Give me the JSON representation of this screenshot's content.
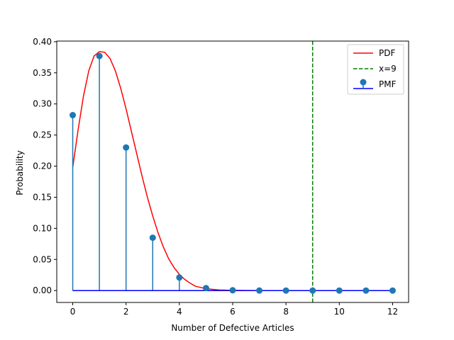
{
  "chart_data": {
    "type": "line",
    "title": "",
    "xlabel": "Number of Defective Articles",
    "ylabel": "Probability",
    "xlim": [
      -0.6,
      12.6
    ],
    "ylim": [
      -0.0191,
      0.401
    ],
    "xticks": [
      0,
      2,
      4,
      6,
      8,
      10,
      12
    ],
    "xtick_labels": [
      "0",
      "2",
      "4",
      "6",
      "8",
      "10",
      "12"
    ],
    "yticks": [
      0.0,
      0.05,
      0.1,
      0.15,
      0.2,
      0.25,
      0.3,
      0.35,
      0.4
    ],
    "ytick_labels": [
      "0.00",
      "0.05",
      "0.10",
      "0.15",
      "0.20",
      "0.25",
      "0.30",
      "0.35",
      "0.40"
    ],
    "grid": false,
    "legend_position": "top-right",
    "legend": [
      {
        "label": "PDF",
        "style": "solid-line",
        "color": "#ff0000"
      },
      {
        "label": "x=9",
        "style": "dashed-line",
        "color": "#008000"
      },
      {
        "label": "PMF",
        "style": "stem",
        "color": "#1f77b4",
        "baseline_color": "#0000ff"
      }
    ],
    "series": [
      {
        "name": "PMF",
        "kind": "stem",
        "color": "#1f77b4",
        "baseline_color": "#0000ff",
        "x": [
          0,
          1,
          2,
          3,
          4,
          5,
          6,
          7,
          8,
          9,
          10,
          11,
          12
        ],
        "y": [
          0.282,
          0.377,
          0.23,
          0.085,
          0.021,
          0.004,
          0.0005,
          5e-05,
          0.0,
          0.0,
          0.0,
          0.0,
          0.0
        ]
      },
      {
        "name": "PDF",
        "kind": "line",
        "color": "#ff0000",
        "x": [
          0.0,
          0.2,
          0.4,
          0.6,
          0.8,
          1.0,
          1.2,
          1.4,
          1.6,
          1.8,
          2.0,
          2.2,
          2.4,
          2.6,
          2.8,
          3.0,
          3.2,
          3.4,
          3.6,
          3.8,
          4.0,
          4.2,
          4.4,
          4.6,
          4.8,
          5.0,
          5.5,
          6.0,
          7.0,
          8.0,
          10.0,
          12.0
        ],
        "y": [
          0.198,
          0.258,
          0.312,
          0.353,
          0.377,
          0.384,
          0.383,
          0.373,
          0.353,
          0.325,
          0.292,
          0.256,
          0.22,
          0.184,
          0.15,
          0.12,
          0.093,
          0.07,
          0.051,
          0.037,
          0.026,
          0.018,
          0.012,
          0.007,
          0.005,
          0.003,
          0.001,
          0.0004,
          0.0,
          0.0,
          0.0,
          0.0
        ]
      },
      {
        "name": "x=9",
        "kind": "vline",
        "color": "#008000",
        "x": 9
      }
    ]
  }
}
